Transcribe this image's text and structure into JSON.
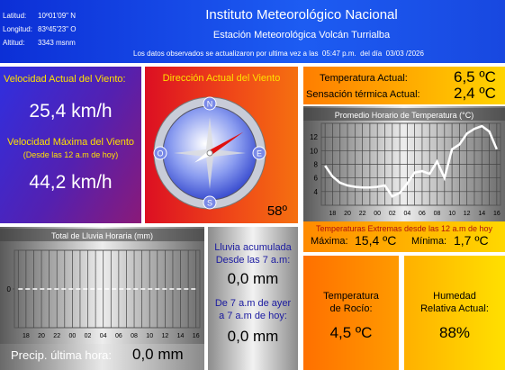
{
  "header": {
    "latitude_label": "Latitud:",
    "latitude": "10º01'09\" N",
    "longitude_label": "Longitud:",
    "longitude": "83º45'23\" O",
    "altitude_label": "Altitud:",
    "altitude": "3343 msnm",
    "title": "Instituto Meteorológico Nacional",
    "subtitle": "Estación Meteorológica Volcán Turrialba",
    "update_prefix": "Los datos observados se actualizaron por ultima vez a las",
    "update_time": "05:47 p.m.",
    "update_day_label": "del día",
    "update_date": "03/03 /2026"
  },
  "wind": {
    "current_label": "Velocidad Actual del Viento:",
    "current": "25,4 km/h",
    "max_label": "Velocidad Máxima del Viento",
    "max_note": "(Desde las 12 a.m de hoy)",
    "max": "44,2 km/h"
  },
  "direction": {
    "label": "Dirección Actual del Viento",
    "compass": [
      "N",
      "E",
      "S",
      "O"
    ],
    "value": 58,
    "value_label": "58º"
  },
  "temperature": {
    "current_label": "Temperatura Actual:",
    "current": "6,5 ºC",
    "feels_label": "Sensación térmica Actual:",
    "feels": "2,4 ºC"
  },
  "temp_chart": {
    "type": "line",
    "title": "Promedio Horario de Temperatura (°C)",
    "color": "#ffffff",
    "line_style": "solid",
    "categories": [
      null,
      "18",
      null,
      "20",
      null,
      "22",
      null,
      "00",
      null,
      "02",
      null,
      "04",
      null,
      "06",
      null,
      "08",
      null,
      "10",
      null,
      "12",
      null,
      "14",
      null,
      "16"
    ],
    "values": [
      7.8,
      6.2,
      5.3,
      4.9,
      4.7,
      4.6,
      4.6,
      4.7,
      4.9,
      3.3,
      3.8,
      5.2,
      6.8,
      7.0,
      6.6,
      8.4,
      6.0,
      10.2,
      10.9,
      12.5,
      13.2,
      13.6,
      12.8,
      10.2
    ],
    "ylim": [
      2,
      14
    ],
    "yticks": [
      4,
      6,
      8,
      10,
      12
    ],
    "grid": true
  },
  "rain_chart": {
    "type": "line",
    "title": "Total de Lluvia Horaria (mm)",
    "color": "#ffffff",
    "line_style": "dashed",
    "categories": [
      null,
      "18",
      null,
      "20",
      null,
      "22",
      null,
      "00",
      null,
      "02",
      null,
      "04",
      null,
      "06",
      null,
      "08",
      null,
      "10",
      null,
      "12",
      null,
      "14",
      null,
      "16"
    ],
    "values": [
      0,
      0,
      0,
      0,
      0,
      0,
      0,
      0,
      0,
      0,
      0,
      0,
      0,
      0,
      0,
      0,
      0,
      0,
      0,
      0,
      0,
      0,
      0,
      0
    ],
    "ylim": [
      -1,
      1
    ],
    "yticks": [
      0
    ],
    "grid": false
  },
  "rain": {
    "last_hour_label": "Precip. última hora:",
    "last_hour": "0,0 mm",
    "accum_label": "Lluvia acumulada Desde las 7 a.m:",
    "accum": "0,0 mm",
    "day_label": "De 7 a.m de ayer a 7 a.m de hoy:",
    "day": "0,0 mm"
  },
  "extremes": {
    "title": "Temperaturas Extremas desde las 12 a.m de hoy",
    "max_label": "Máxima:",
    "max": "15,4 ºC",
    "min_label": "Mínima:",
    "min": "1,7 ºC"
  },
  "dew": {
    "label": "Temperatura de Rocío:",
    "value": "4,5 ºC"
  },
  "humidity": {
    "label": "Humedad Relativa Actual:",
    "value": "88%"
  }
}
